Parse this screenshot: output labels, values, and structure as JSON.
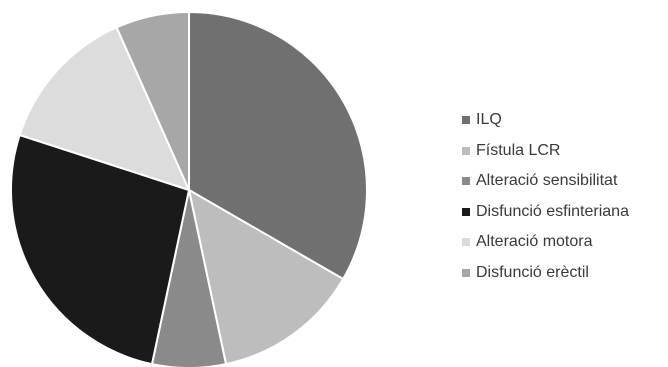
{
  "chart_data": {
    "type": "pie",
    "title": "",
    "legend_position": "right",
    "categories": [
      "ILQ",
      "Fístula LCR",
      "Alteració sensibilitat",
      "Disfunció esfinteriana",
      "Alteració motora",
      "Disfunció erèctil"
    ],
    "values": [
      5,
      2,
      1,
      4,
      2,
      1
    ],
    "colors": [
      "#707070",
      "#bdbdbd",
      "#8a8a8a",
      "#1a1a1a",
      "#dcdcdc",
      "#a7a7a7"
    ]
  }
}
